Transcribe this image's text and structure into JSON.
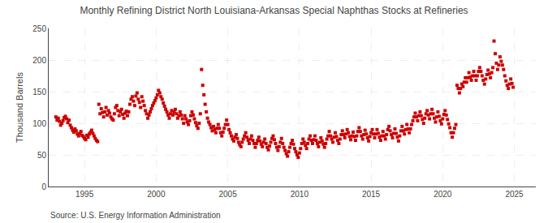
{
  "chart_data": {
    "type": "scatter",
    "title": "Monthly Refining District North Louisiana-Arkansas Special Naphthas Stocks at Refineries",
    "ylabel": "Thousand Barrels",
    "annotations": [
      "Source: U.S. Energy Information Administration"
    ],
    "color": "#CC0000",
    "marker": "square",
    "grid": true,
    "xlim": [
      1992.5,
      2026.5
    ],
    "ylim": [
      0,
      250
    ],
    "xticks": [
      1995,
      2000,
      2005,
      2010,
      2015,
      2020,
      2025
    ],
    "yticks": [
      0,
      50,
      100,
      150,
      200,
      250
    ],
    "x": [
      1993.0,
      1993.083,
      1993.167,
      1993.25,
      1993.333,
      1993.417,
      1993.5,
      1993.583,
      1993.667,
      1993.75,
      1993.833,
      1993.917,
      1994.0,
      1994.083,
      1994.167,
      1994.25,
      1994.333,
      1994.417,
      1994.5,
      1994.583,
      1994.667,
      1994.75,
      1994.833,
      1994.917,
      1995.0,
      1995.083,
      1995.167,
      1995.25,
      1995.333,
      1995.417,
      1995.5,
      1995.583,
      1995.667,
      1995.75,
      1995.833,
      1995.917,
      1996.0,
      1996.083,
      1996.167,
      1996.25,
      1996.333,
      1996.417,
      1996.5,
      1996.583,
      1996.667,
      1996.75,
      1996.833,
      1996.917,
      1997.0,
      1997.083,
      1997.167,
      1997.25,
      1997.333,
      1997.417,
      1997.5,
      1997.583,
      1997.667,
      1997.75,
      1997.833,
      1997.917,
      1998.0,
      1998.083,
      1998.167,
      1998.25,
      1998.333,
      1998.417,
      1998.5,
      1998.583,
      1998.667,
      1998.75,
      1998.833,
      1998.917,
      1999.0,
      1999.083,
      1999.167,
      1999.25,
      1999.333,
      1999.417,
      1999.5,
      1999.583,
      1999.667,
      1999.75,
      1999.833,
      1999.917,
      2000.0,
      2000.083,
      2000.167,
      2000.25,
      2000.333,
      2000.417,
      2000.5,
      2000.583,
      2000.667,
      2000.75,
      2000.833,
      2000.917,
      2001.0,
      2001.083,
      2001.167,
      2001.25,
      2001.333,
      2001.417,
      2001.5,
      2001.583,
      2001.667,
      2001.75,
      2001.833,
      2001.917,
      2002.0,
      2002.083,
      2002.167,
      2002.25,
      2002.333,
      2002.417,
      2002.5,
      2002.583,
      2002.667,
      2002.75,
      2002.833,
      2002.917,
      2003.0,
      2003.083,
      2003.167,
      2003.25,
      2003.333,
      2003.417,
      2003.5,
      2003.583,
      2003.667,
      2003.75,
      2003.833,
      2003.917,
      2004.0,
      2004.083,
      2004.167,
      2004.25,
      2004.333,
      2004.417,
      2004.5,
      2004.583,
      2004.667,
      2004.75,
      2004.833,
      2004.917,
      2005.0,
      2005.083,
      2005.167,
      2005.25,
      2005.333,
      2005.417,
      2005.5,
      2005.583,
      2005.667,
      2005.75,
      2005.833,
      2005.917,
      2006.0,
      2006.083,
      2006.167,
      2006.25,
      2006.333,
      2006.417,
      2006.5,
      2006.583,
      2006.667,
      2006.75,
      2006.833,
      2006.917,
      2007.0,
      2007.083,
      2007.167,
      2007.25,
      2007.333,
      2007.417,
      2007.5,
      2007.583,
      2007.667,
      2007.75,
      2007.833,
      2007.917,
      2008.0,
      2008.083,
      2008.167,
      2008.25,
      2008.333,
      2008.417,
      2008.5,
      2008.583,
      2008.667,
      2008.75,
      2008.833,
      2008.917,
      2009.0,
      2009.083,
      2009.167,
      2009.25,
      2009.333,
      2009.417,
      2009.5,
      2009.583,
      2009.667,
      2009.75,
      2009.833,
      2009.917,
      2010.0,
      2010.083,
      2010.167,
      2010.25,
      2010.333,
      2010.417,
      2010.5,
      2010.583,
      2010.667,
      2010.75,
      2010.833,
      2010.917,
      2011.0,
      2011.083,
      2011.167,
      2011.25,
      2011.333,
      2011.417,
      2011.5,
      2011.583,
      2011.667,
      2011.75,
      2011.833,
      2011.917,
      2012.0,
      2012.083,
      2012.167,
      2012.25,
      2012.333,
      2012.417,
      2012.5,
      2012.583,
      2012.667,
      2012.75,
      2012.833,
      2012.917,
      2013.0,
      2013.083,
      2013.167,
      2013.25,
      2013.333,
      2013.417,
      2013.5,
      2013.583,
      2013.667,
      2013.75,
      2013.833,
      2013.917,
      2014.0,
      2014.083,
      2014.167,
      2014.25,
      2014.333,
      2014.417,
      2014.5,
      2014.583,
      2014.667,
      2014.75,
      2014.833,
      2014.917,
      2015.0,
      2015.083,
      2015.167,
      2015.25,
      2015.333,
      2015.417,
      2015.5,
      2015.583,
      2015.667,
      2015.75,
      2015.833,
      2015.917,
      2016.0,
      2016.083,
      2016.167,
      2016.25,
      2016.333,
      2016.417,
      2016.5,
      2016.583,
      2016.667,
      2016.75,
      2016.833,
      2016.917,
      2017.0,
      2017.083,
      2017.167,
      2017.25,
      2017.333,
      2017.417,
      2017.5,
      2017.583,
      2017.667,
      2017.75,
      2017.833,
      2017.917,
      2018.0,
      2018.083,
      2018.167,
      2018.25,
      2018.333,
      2018.417,
      2018.5,
      2018.583,
      2018.667,
      2018.75,
      2018.833,
      2018.917,
      2019.0,
      2019.083,
      2019.167,
      2019.25,
      2019.333,
      2019.417,
      2019.5,
      2019.583,
      2019.667,
      2019.75,
      2019.833,
      2019.917,
      2020.0,
      2020.083,
      2020.167,
      2020.25,
      2020.333,
      2020.417,
      2020.5,
      2020.583,
      2020.667,
      2020.75,
      2020.833,
      2020.917,
      2021.0,
      2021.083,
      2021.167,
      2021.25,
      2021.333,
      2021.417,
      2021.5,
      2021.583,
      2021.667,
      2021.75,
      2021.833,
      2021.917,
      2022.0,
      2022.083,
      2022.167,
      2022.25,
      2022.333,
      2022.417,
      2022.5,
      2022.583,
      2022.667,
      2022.75,
      2022.833,
      2022.917,
      2023.0,
      2023.083,
      2023.167,
      2023.25,
      2023.333,
      2023.417,
      2023.5,
      2023.583,
      2023.667,
      2023.75,
      2023.833,
      2023.917,
      2024.0,
      2024.083,
      2024.167,
      2024.25,
      2024.333,
      2024.417,
      2024.5,
      2024.583,
      2024.667,
      2024.75,
      2024.833,
      2024.917
    ],
    "values": [
      110,
      105,
      108,
      103,
      97,
      100,
      104,
      109,
      111,
      107,
      101,
      105,
      97,
      93,
      89,
      86,
      91,
      88,
      83,
      80,
      84,
      87,
      81,
      79,
      76,
      74,
      81,
      78,
      83,
      86,
      89,
      84,
      80,
      76,
      73,
      71,
      130,
      115,
      123,
      117,
      110,
      118,
      125,
      113,
      120,
      116,
      110,
      107,
      105,
      115,
      125,
      128,
      120,
      112,
      118,
      122,
      114,
      108,
      116,
      119,
      112,
      118,
      130,
      138,
      142,
      135,
      128,
      143,
      148,
      138,
      133,
      125,
      142,
      135,
      128,
      120,
      115,
      108,
      113,
      118,
      123,
      128,
      132,
      136,
      140,
      145,
      152,
      148,
      142,
      138,
      132,
      127,
      122,
      118,
      113,
      108,
      115,
      120,
      113,
      118,
      122,
      115,
      108,
      112,
      118,
      113,
      107,
      100,
      112,
      107,
      102,
      98,
      104,
      112,
      118,
      113,
      107,
      101,
      96,
      92,
      100,
      115,
      185,
      160,
      145,
      130,
      118,
      108,
      102,
      98,
      93,
      88,
      95,
      90,
      85,
      92,
      98,
      92,
      85,
      80,
      86,
      92,
      98,
      105,
      98,
      90,
      85,
      80,
      75,
      72,
      78,
      82,
      76,
      70,
      66,
      63,
      70,
      75,
      80,
      85,
      78,
      73,
      68,
      75,
      80,
      73,
      68,
      62,
      68,
      73,
      78,
      72,
      67,
      63,
      70,
      75,
      68,
      62,
      58,
      64,
      70,
      76,
      80,
      74,
      68,
      62,
      57,
      63,
      70,
      76,
      68,
      62,
      57,
      52,
      48,
      55,
      62,
      68,
      73,
      67,
      60,
      55,
      50,
      46,
      53,
      60,
      68,
      75,
      70,
      65,
      60,
      68,
      75,
      80,
      73,
      68,
      74,
      80,
      73,
      68,
      63,
      70,
      77,
      72,
      67,
      62,
      68,
      75,
      80,
      87,
      80,
      75,
      70,
      78,
      85,
      79,
      73,
      68,
      75,
      82,
      88,
      82,
      77,
      83,
      90,
      85,
      79,
      74,
      80,
      86,
      79,
      73,
      80,
      87,
      93,
      87,
      80,
      75,
      82,
      89,
      83,
      77,
      72,
      79,
      85,
      90,
      83,
      77,
      83,
      90,
      84,
      78,
      73,
      80,
      87,
      80,
      75,
      82,
      90,
      95,
      88,
      82,
      77,
      84,
      91,
      84,
      78,
      72,
      80,
      88,
      95,
      88,
      83,
      90,
      98,
      91,
      85,
      91,
      98,
      104,
      110,
      116,
      110,
      104,
      112,
      118,
      112,
      106,
      100,
      108,
      115,
      120,
      113,
      107,
      115,
      122,
      115,
      108,
      102,
      110,
      118,
      111,
      104,
      99,
      107,
      114,
      120,
      113,
      106,
      99,
      93,
      85,
      78,
      85,
      92,
      98,
      160,
      155,
      148,
      155,
      162,
      158,
      165,
      172,
      165,
      172,
      180,
      173,
      168,
      175,
      182,
      175,
      168,
      175,
      182,
      188,
      182,
      175,
      168,
      162,
      170,
      177,
      184,
      178,
      172,
      180,
      188,
      230,
      210,
      195,
      185,
      192,
      205,
      198,
      192,
      185,
      175,
      167,
      160,
      155,
      162,
      170,
      163,
      157
    ]
  }
}
